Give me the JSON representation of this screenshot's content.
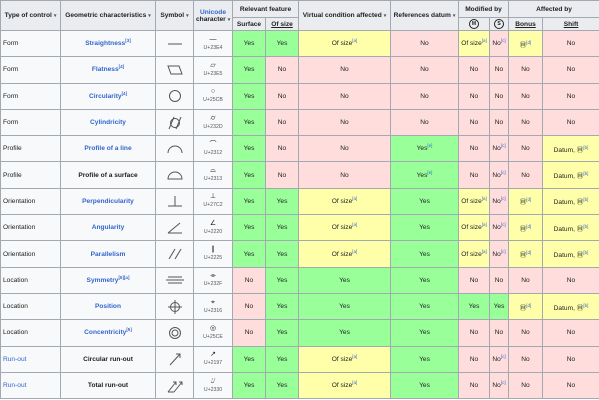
{
  "headers": {
    "type_of_control": "Type of control",
    "geometric_characteristics": "Geometric characteristics",
    "symbol": "Symbol",
    "unicode": "Unicode",
    "character": "character",
    "relevant_feature": "Relevant feature",
    "surface": "Surface",
    "of_size": "Of size",
    "virtual_condition": "Virtual condition affected",
    "references_datum": "References datum",
    "modified_by": "Modified by",
    "modified_m": "M",
    "modified_s": "S",
    "affected_by": "Affected by",
    "bonus": "Bonus",
    "shift": "Shift",
    "sort_icon": "sort-arrows"
  },
  "rows": [
    {
      "type": "Form",
      "type_link": false,
      "char": "Straightness",
      "char_link": true,
      "char_sup": "[3]",
      "symbol": "straightness",
      "glyph": "—",
      "code": "U+23E4",
      "surface": "Yes",
      "of_size": "Yes",
      "virtual": "Of size",
      "virtual_sup": "[a]",
      "datum": "No",
      "datum_sup": "",
      "mod_m": "Of size",
      "mod_m_sup": "[a]",
      "mod_s": "No",
      "mod_s_sup": "[c]",
      "bonus": "Ⓜ",
      "bonus_sup": "[d]",
      "shift": "No"
    },
    {
      "type": "Form",
      "type_link": false,
      "char": "Flatness",
      "char_link": true,
      "char_sup": "[4]",
      "symbol": "flatness",
      "glyph": "▱",
      "code": "U+23E5",
      "surface": "Yes",
      "of_size": "No",
      "virtual": "No",
      "virtual_sup": "",
      "datum": "No",
      "datum_sup": "",
      "mod_m": "No",
      "mod_m_sup": "",
      "mod_s": "No",
      "mod_s_sup": "",
      "bonus": "No",
      "bonus_sup": "",
      "shift": "No"
    },
    {
      "type": "Form",
      "type_link": false,
      "char": "Circularity",
      "char_link": true,
      "char_sup": "[4]",
      "symbol": "circularity",
      "glyph": "○",
      "code": "U+25CB",
      "surface": "Yes",
      "of_size": "No",
      "virtual": "No",
      "virtual_sup": "",
      "datum": "No",
      "datum_sup": "",
      "mod_m": "No",
      "mod_m_sup": "",
      "mod_s": "No",
      "mod_s_sup": "",
      "bonus": "No",
      "bonus_sup": "",
      "shift": "No"
    },
    {
      "type": "Form",
      "type_link": false,
      "char": "Cylindricity",
      "char_link": true,
      "char_sup": "",
      "symbol": "cylindricity",
      "glyph": "⌭",
      "code": "U+232D",
      "surface": "Yes",
      "of_size": "No",
      "virtual": "No",
      "virtual_sup": "",
      "datum": "No",
      "datum_sup": "",
      "mod_m": "No",
      "mod_m_sup": "",
      "mod_s": "No",
      "mod_s_sup": "",
      "bonus": "No",
      "bonus_sup": "",
      "shift": "No"
    },
    {
      "type": "Profile",
      "type_link": false,
      "char_pre": "Profile of a ",
      "char": "line",
      "char_link": true,
      "char_sup": "",
      "symbol": "profile-line",
      "glyph": "⌒",
      "code": "U+2312",
      "surface": "Yes",
      "of_size": "No",
      "virtual": "No",
      "virtual_sup": "",
      "datum": "Yes",
      "datum_sup": "[e]",
      "mod_m": "No",
      "mod_m_sup": "",
      "mod_s": "No",
      "mod_s_sup": "[c]",
      "bonus": "No",
      "bonus_sup": "",
      "shift": "Datum, Ⓜ",
      "shift_sup": "[b]"
    },
    {
      "type": "Profile",
      "type_link": false,
      "char_pre": "Profile of a surface",
      "char": "",
      "char_link": false,
      "char_sup": "",
      "symbol": "profile-surface",
      "glyph": "⌓",
      "code": "U+2313",
      "surface": "Yes",
      "of_size": "No",
      "virtual": "No",
      "virtual_sup": "",
      "datum": "Yes",
      "datum_sup": "[e]",
      "mod_m": "No",
      "mod_m_sup": "",
      "mod_s": "No",
      "mod_s_sup": "[c]",
      "bonus": "No",
      "bonus_sup": "",
      "shift": "Datum, Ⓜ",
      "shift_sup": "[b]"
    },
    {
      "type": "Orientation",
      "type_link": false,
      "char": "Perpendicularity",
      "char_link": true,
      "char_sup": "",
      "symbol": "perpendicularity",
      "glyph": "⊥",
      "code": "U+27C2",
      "surface": "Yes",
      "of_size": "Yes",
      "virtual": "Of size",
      "virtual_sup": "[a]",
      "datum": "Yes",
      "datum_sup": "",
      "mod_m": "Of size",
      "mod_m_sup": "[a]",
      "mod_s": "No",
      "mod_s_sup": "[c]",
      "bonus": "Ⓜ",
      "bonus_sup": "[d]",
      "shift": "Datum, Ⓜ",
      "shift_sup": "[b]"
    },
    {
      "type": "Orientation",
      "type_link": false,
      "char": "Angularity",
      "char_link": true,
      "char_sup": "",
      "symbol": "angularity",
      "glyph": "∠",
      "code": "U+2220",
      "surface": "Yes",
      "of_size": "Yes",
      "virtual": "Of size",
      "virtual_sup": "[a]",
      "datum": "Yes",
      "datum_sup": "",
      "mod_m": "Of size",
      "mod_m_sup": "[a]",
      "mod_s": "No",
      "mod_s_sup": "[c]",
      "bonus": "Ⓜ",
      "bonus_sup": "[d]",
      "shift": "Datum, Ⓜ",
      "shift_sup": "[b]"
    },
    {
      "type": "Orientation",
      "type_link": false,
      "char": "Parallelism",
      "char_link": true,
      "char_sup": "",
      "symbol": "parallelism",
      "glyph": "∥",
      "code": "U+2225",
      "surface": "Yes",
      "of_size": "Yes",
      "virtual": "Of size",
      "virtual_sup": "[a]",
      "datum": "Yes",
      "datum_sup": "",
      "mod_m": "Of size",
      "mod_m_sup": "[a]",
      "mod_s": "No",
      "mod_s_sup": "[c]",
      "bonus": "Ⓜ",
      "bonus_sup": "[d]",
      "shift": "Datum, Ⓜ",
      "shift_sup": "[b]"
    },
    {
      "type": "Location",
      "type_link": false,
      "char": "Symmetry",
      "char_link": true,
      "char_sup": "[5][a]",
      "symbol": "symmetry",
      "glyph": "⌯",
      "code": "U+232F",
      "surface": "No",
      "of_size": "Yes",
      "virtual": "Yes",
      "virtual_sup": "",
      "datum": "Yes",
      "datum_sup": "",
      "mod_m": "No",
      "mod_m_sup": "",
      "mod_s": "No",
      "mod_s_sup": "",
      "bonus": "No",
      "bonus_sup": "",
      "shift": "No"
    },
    {
      "type": "Location",
      "type_link": false,
      "char": "Position",
      "char_link": true,
      "char_sup": "",
      "symbol": "position",
      "glyph": "⌖",
      "code": "U+2316",
      "surface": "No",
      "of_size": "Yes",
      "virtual": "Yes",
      "virtual_sup": "",
      "datum": "Yes",
      "datum_sup": "",
      "mod_m": "Yes",
      "mod_m_sup": "",
      "mod_s": "Yes",
      "mod_s_sup": "",
      "bonus": "Ⓜ",
      "bonus_sup": "[d]",
      "shift": "Datum, Ⓜ",
      "shift_sup": "[b]"
    },
    {
      "type": "Location",
      "type_link": false,
      "char": "Concentricity",
      "char_link": true,
      "char_sup": "[5]",
      "symbol": "concentricity",
      "glyph": "◎",
      "code": "U+25CE",
      "surface": "No",
      "of_size": "Yes",
      "virtual": "Yes",
      "virtual_sup": "",
      "datum": "Yes",
      "datum_sup": "",
      "mod_m": "No",
      "mod_m_sup": "",
      "mod_s": "No",
      "mod_s_sup": "",
      "bonus": "No",
      "bonus_sup": "",
      "shift": "No"
    },
    {
      "type": "Run-out",
      "type_link": true,
      "char_pre": "Circular run-out",
      "char": "",
      "char_link": false,
      "char_sup": "",
      "symbol": "circular-runout",
      "glyph": "↗",
      "code": "U+2197",
      "surface": "Yes",
      "of_size": "Yes",
      "virtual": "Of size",
      "virtual_sup": "[a]",
      "datum": "Yes",
      "datum_sup": "",
      "mod_m": "No",
      "mod_m_sup": "",
      "mod_s": "No",
      "mod_s_sup": "[c]",
      "bonus": "No",
      "bonus_sup": "",
      "shift": "No"
    },
    {
      "type": "Run-out",
      "type_link": true,
      "char_pre": "Total run-out",
      "char": "",
      "char_link": false,
      "char_sup": "",
      "symbol": "total-runout",
      "glyph": "⌰",
      "code": "U+2330",
      "surface": "Yes",
      "of_size": "Yes",
      "virtual": "Of size",
      "virtual_sup": "[a]",
      "datum": "Yes",
      "datum_sup": "",
      "mod_m": "No",
      "mod_m_sup": "",
      "mod_s": "No",
      "mod_s_sup": "[c]",
      "bonus": "No",
      "bonus_sup": "",
      "shift": "No"
    }
  ],
  "colors": {
    "yes": "#99ff99",
    "no": "#ffdddd",
    "partial": "#ffffaa",
    "header": "#eaecf0",
    "link": "#3366cc"
  }
}
